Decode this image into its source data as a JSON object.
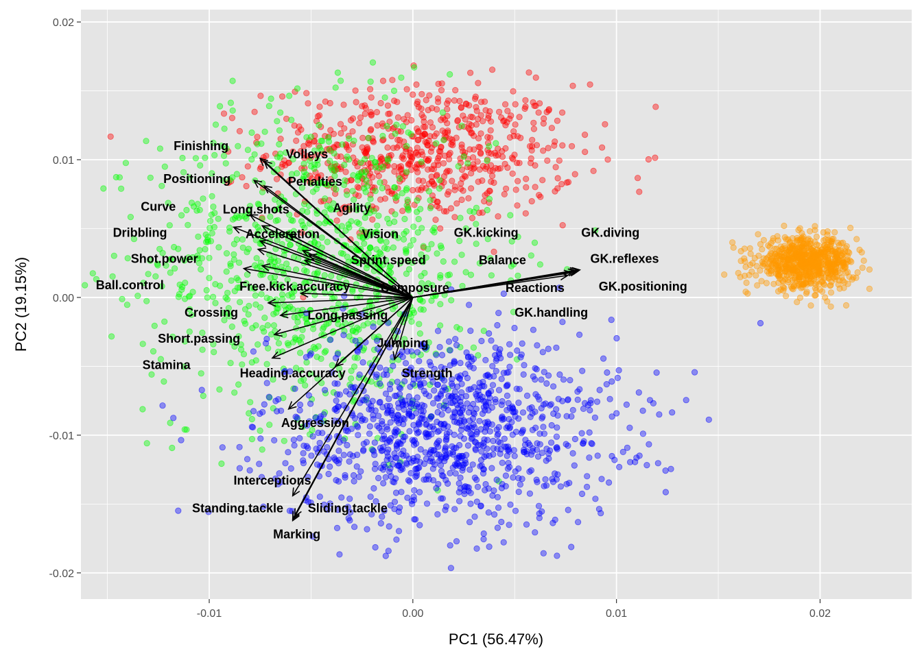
{
  "chart_data": {
    "type": "scatter",
    "title": "",
    "xlabel": "PC1 (56.47%)",
    "ylabel": "PC2 (19.15%)",
    "xlim": [
      -0.0163,
      0.0245
    ],
    "ylim": [
      -0.0219,
      0.0209
    ],
    "x_ticks": [
      -0.01,
      0.0,
      0.01,
      0.02
    ],
    "x_tick_labels": [
      "-0.01",
      "0.00",
      "0.01",
      "0.02"
    ],
    "y_ticks": [
      -0.02,
      -0.01,
      0.0,
      0.01,
      0.02
    ],
    "y_tick_labels": [
      "-0.02",
      "-0.01",
      "0.00",
      "0.01",
      "0.02"
    ],
    "grid": true,
    "legend": "none",
    "panel_color": "#e5e5e5",
    "grid_color": "#ffffff",
    "point_opacity": 0.4,
    "clusters": [
      {
        "color": "#ff0000",
        "cx": 0.0005,
        "cy": 0.0105,
        "sx": 0.0038,
        "sy": 0.0025,
        "n": 650
      },
      {
        "color": "#00ff00",
        "cx": -0.0045,
        "cy": 0.0025,
        "sx": 0.0042,
        "sy": 0.0055,
        "n": 1000
      },
      {
        "color": "#0000ff",
        "cx": 0.0015,
        "cy": -0.0095,
        "sx": 0.0043,
        "sy": 0.0035,
        "n": 1100
      },
      {
        "color": "#ff9900",
        "cx": 0.0193,
        "cy": 0.0025,
        "sx": 0.0012,
        "sy": 0.0009,
        "n": 700
      }
    ],
    "arrow_origin": [
      0.0,
      0.0
    ],
    "arrows": [
      {
        "name": "Finishing",
        "x": -0.0075,
        "y": 0.0101,
        "lx": -0.0104,
        "ly": 0.011
      },
      {
        "name": "Volleys",
        "x": -0.0073,
        "y": 0.0099,
        "lx": -0.0052,
        "ly": 0.0104
      },
      {
        "name": "Positioning",
        "x": -0.0078,
        "y": 0.0085,
        "lx": -0.0106,
        "ly": 0.0086
      },
      {
        "name": "Penalties",
        "x": -0.0073,
        "y": 0.0081,
        "lx": -0.0048,
        "ly": 0.0084
      },
      {
        "name": "Curve",
        "x": -0.0088,
        "y": 0.0051,
        "lx": -0.0125,
        "ly": 0.0066
      },
      {
        "name": "Long.shots",
        "x": -0.008,
        "y": 0.006,
        "lx": -0.0077,
        "ly": 0.0064
      },
      {
        "name": "Agility",
        "x": -0.0061,
        "y": 0.0046,
        "lx": -0.003,
        "ly": 0.0065
      },
      {
        "name": "Dribbling",
        "x": -0.0074,
        "y": 0.0052,
        "lx": -0.0134,
        "ly": 0.0047
      },
      {
        "name": "Acceleration",
        "x": -0.0075,
        "y": 0.0041,
        "lx": -0.0064,
        "ly": 0.0046
      },
      {
        "name": "Vision",
        "x": -0.0054,
        "y": 0.0034,
        "lx": -0.0016,
        "ly": 0.0046
      },
      {
        "name": "Shot.power",
        "x": -0.0076,
        "y": 0.0035,
        "lx": -0.0122,
        "ly": 0.0028
      },
      {
        "name": "Sprint.speed",
        "x": -0.0053,
        "y": 0.0027,
        "lx": -0.0012,
        "ly": 0.0027
      },
      {
        "name": "Balance",
        "x": -0.0051,
        "y": 0.0031,
        "lx": 0.0044,
        "ly": 0.0027
      },
      {
        "name": "Ball.control",
        "x": -0.0083,
        "y": 0.0021,
        "lx": -0.0139,
        "ly": 0.0009
      },
      {
        "name": "Free.kick.accuracy",
        "x": -0.0074,
        "y": 0.0023,
        "lx": -0.0058,
        "ly": 0.0008
      },
      {
        "name": "Composure",
        "x": -0.0055,
        "y": 0.0003,
        "lx": 0.0001,
        "ly": 0.0007
      },
      {
        "name": "Reactions",
        "x": 0.0081,
        "y": 0.002,
        "lx": 0.006,
        "ly": 0.0007
      },
      {
        "name": "GK.kicking",
        "x": 0.0076,
        "y": 0.0016,
        "lx": 0.0036,
        "ly": 0.0047
      },
      {
        "name": "GK.diving",
        "x": 0.0081,
        "y": 0.0019,
        "lx": 0.0097,
        "ly": 0.0047
      },
      {
        "name": "GK.reflexes",
        "x": 0.0082,
        "y": 0.002,
        "lx": 0.0104,
        "ly": 0.0028
      },
      {
        "name": "GK.positioning",
        "x": 0.008,
        "y": 0.0019,
        "lx": 0.0113,
        "ly": 0.0008
      },
      {
        "name": "GK.handling",
        "x": 0.0078,
        "y": 0.0018,
        "lx": 0.0068,
        "ly": -0.0011
      },
      {
        "name": "Crossing",
        "x": -0.0071,
        "y": -0.0004,
        "lx": -0.0099,
        "ly": -0.0011
      },
      {
        "name": "Long.passing",
        "x": -0.0065,
        "y": -0.0013,
        "lx": -0.0032,
        "ly": -0.0013
      },
      {
        "name": "Short.passing",
        "x": -0.0068,
        "y": -0.0027,
        "lx": -0.0105,
        "ly": -0.003
      },
      {
        "name": "Jumping",
        "x": -0.001,
        "y": -0.0035,
        "lx": -0.0005,
        "ly": -0.0033
      },
      {
        "name": "Stamina",
        "x": -0.0069,
        "y": -0.0044,
        "lx": -0.0121,
        "ly": -0.0049
      },
      {
        "name": "Heading.accuracy",
        "x": -0.0038,
        "y": -0.005,
        "lx": -0.0059,
        "ly": -0.0055
      },
      {
        "name": "Strength",
        "x": -0.0009,
        "y": -0.0045,
        "lx": 0.0007,
        "ly": -0.0055
      },
      {
        "name": "Aggression",
        "x": -0.0061,
        "y": -0.0081,
        "lx": -0.0048,
        "ly": -0.0091
      },
      {
        "name": "Interceptions",
        "x": -0.0059,
        "y": -0.0144,
        "lx": -0.0069,
        "ly": -0.0133
      },
      {
        "name": "Standing.tackle",
        "x": -0.0058,
        "y": -0.0159,
        "lx": -0.0086,
        "ly": -0.0153
      },
      {
        "name": "Sliding.tackle",
        "x": -0.0059,
        "y": -0.0161,
        "lx": -0.0032,
        "ly": -0.0153
      },
      {
        "name": "Marking",
        "x": -0.0059,
        "y": -0.0162,
        "lx": -0.0057,
        "ly": -0.0172
      }
    ]
  }
}
